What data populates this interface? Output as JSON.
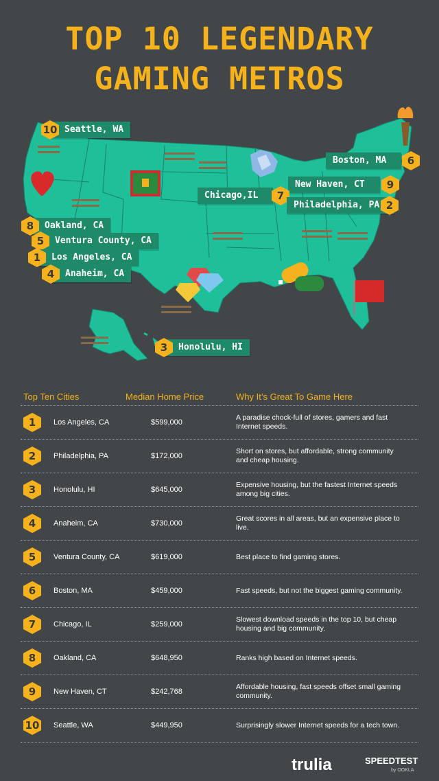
{
  "title": {
    "line1": "TOP 10 LEGENDARY",
    "line2": "GAMING METROS"
  },
  "colors": {
    "background": "#424649",
    "accent": "#f5b21c",
    "map": "#1fbf9a",
    "label": "#1f8a6a"
  },
  "map_labels": [
    {
      "rank": "10",
      "text": "Seattle, WA"
    },
    {
      "rank": "6",
      "text": "Boston, MA"
    },
    {
      "rank": "9",
      "text": "New Haven, CT"
    },
    {
      "rank": "7",
      "text": "Chicago,IL"
    },
    {
      "rank": "2",
      "text": "Philadelphia, PA"
    },
    {
      "rank": "8",
      "text": "Oakland, CA"
    },
    {
      "rank": "5",
      "text": "Ventura County, CA"
    },
    {
      "rank": "1",
      "text": "Los Angeles, CA"
    },
    {
      "rank": "4",
      "text": "Anaheim, CA"
    },
    {
      "rank": "3",
      "text": "Honolulu, HI"
    }
  ],
  "map_icons": [
    "heart-icon",
    "treasure-chest-icon",
    "crystal-icon",
    "gems-icon",
    "controllers-icon",
    "flag-icon",
    "torch-icon",
    "fence-icon"
  ],
  "table": {
    "headers": {
      "city": "Top Ten Cities",
      "price": "Median Home Price",
      "why": "Why It’s Great To Game Here"
    },
    "rows": [
      {
        "rank": "1",
        "city": "Los Angeles, CA",
        "price": "$599,000",
        "why": "A paradise chock-full of stores, gamers and fast Internet speeds."
      },
      {
        "rank": "2",
        "city": "Philadelphia, PA",
        "price": "$172,000",
        "why": "Short on stores, but affordable, strong community and cheap housing."
      },
      {
        "rank": "3",
        "city": "Honolulu, HI",
        "price": "$645,000",
        "why": "Expensive housing, but the fastest Internet speeds among big cities."
      },
      {
        "rank": "4",
        "city": "Anaheim, CA",
        "price": "$730,000",
        "why": "Great scores in all areas, but an expensive place to live."
      },
      {
        "rank": "5",
        "city": "Ventura County, CA",
        "price": "$619,000",
        "why": "Best place to find gaming stores."
      },
      {
        "rank": "6",
        "city": "Boston, MA",
        "price": "$459,000",
        "why": "Fast speeds, but not the biggest gaming community."
      },
      {
        "rank": "7",
        "city": "Chicago, IL",
        "price": "$259,000",
        "why": "Slowest download speeds in the top 10, but cheap housing and big community."
      },
      {
        "rank": "8",
        "city": "Oakland, CA",
        "price": "$648,950",
        "why": "Ranks high based on Internet speeds."
      },
      {
        "rank": "9",
        "city": "New Haven, CT",
        "price": "$242,768",
        "why": "Affordable housing, fast speeds offset small gaming community."
      },
      {
        "rank": "10",
        "city": "Seattle, WA",
        "price": "$449,950",
        "why": "Surprisingly slower Internet speeds for a tech town."
      }
    ]
  },
  "footer": {
    "trulia": "trulia",
    "speedtest": "SPEEDTEST",
    "by": "by OOKLA"
  }
}
